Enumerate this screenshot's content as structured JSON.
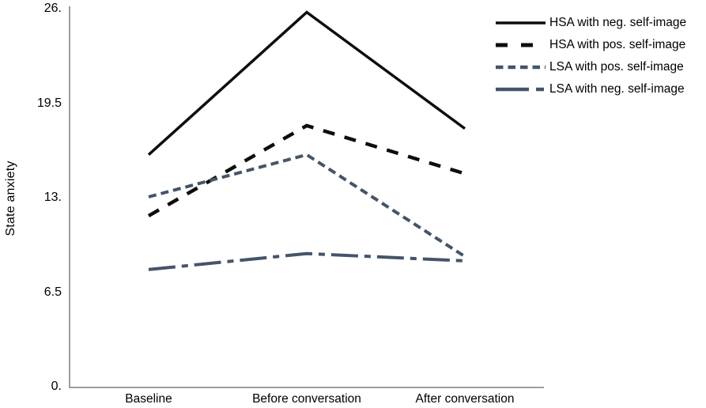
{
  "chart_data": {
    "type": "line",
    "title": "",
    "xlabel": "",
    "ylabel": "State anxiety",
    "categories": [
      "Baseline",
      "Before conversation",
      "After conversation"
    ],
    "ytick_labels": [
      "26.",
      "19.5",
      "13.",
      "6.5",
      "0."
    ],
    "ytick_values": [
      26,
      19.5,
      13,
      6.5,
      0
    ],
    "ylim": [
      0,
      26
    ],
    "grid": false,
    "legend_position": "top-right",
    "axis_color": "#9d9d9d",
    "series": [
      {
        "name": "HSA with neg. self-image",
        "color": "#0d0d0d",
        "dash": "solid",
        "values": [
          15.9,
          25.7,
          17.7
        ]
      },
      {
        "name": "HSA with pos. self-image",
        "color": "#0d0d0d",
        "dash": "long-dash",
        "values": [
          11.7,
          17.9,
          14.6
        ]
      },
      {
        "name": "LSA with pos. self-image",
        "color": "#44546a",
        "dash": "short-dash",
        "values": [
          13.0,
          15.9,
          8.9
        ]
      },
      {
        "name": "LSA with neg. self-image",
        "color": "#44546a",
        "dash": "dash-dot",
        "values": [
          8.0,
          9.1,
          8.6
        ]
      }
    ]
  }
}
